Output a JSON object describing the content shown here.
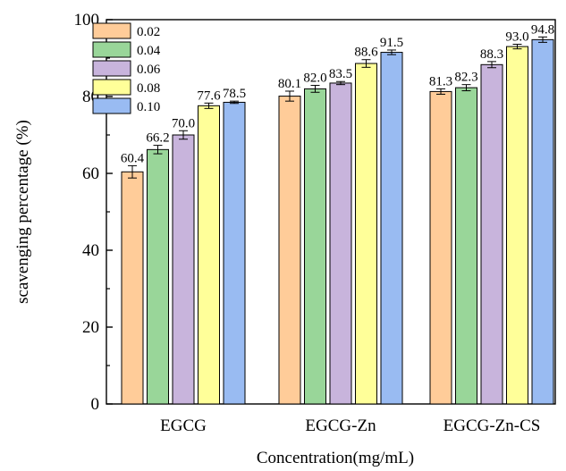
{
  "chart_data": {
    "type": "bar",
    "title": "",
    "xlabel": "Concentration(mg/mL)",
    "ylabel": "scavenging percentage (%)",
    "ylim": [
      0,
      100
    ],
    "yticks": [
      0,
      20,
      40,
      60,
      80,
      100
    ],
    "categories": [
      "EGCG",
      "EGCG-Zn",
      "EGCG-Zn-CS"
    ],
    "series": [
      {
        "name": "0.02",
        "color": "#FFCC99",
        "values": [
          60.4,
          80.1,
          81.3
        ],
        "errors": [
          1.6,
          1.3,
          0.7
        ],
        "labels": [
          "60.4",
          "80.1",
          "81.3"
        ]
      },
      {
        "name": "0.04",
        "color": "#99D699",
        "values": [
          66.2,
          82.0,
          82.3
        ],
        "errors": [
          1.1,
          0.9,
          0.8
        ],
        "labels": [
          "66.2",
          "82.0",
          "82.3"
        ]
      },
      {
        "name": "0.06",
        "color": "#C8B4DC",
        "values": [
          70.0,
          83.5,
          88.3
        ],
        "errors": [
          1.1,
          0.4,
          0.8
        ],
        "labels": [
          "70.0",
          "83.5",
          "88.3"
        ]
      },
      {
        "name": "0.08",
        "color": "#FFFF99",
        "values": [
          77.6,
          88.6,
          93.0
        ],
        "errors": [
          0.7,
          1.0,
          0.6
        ],
        "labels": [
          "77.6",
          "88.6",
          "93.0"
        ]
      },
      {
        "name": "0.10",
        "color": "#99BBF2",
        "values": [
          78.5,
          91.5,
          94.8
        ],
        "errors": [
          0.3,
          0.6,
          0.7
        ],
        "labels": [
          "78.5",
          "91.5",
          "94.8"
        ]
      }
    ],
    "grid": false,
    "legend_position": "top-left"
  }
}
